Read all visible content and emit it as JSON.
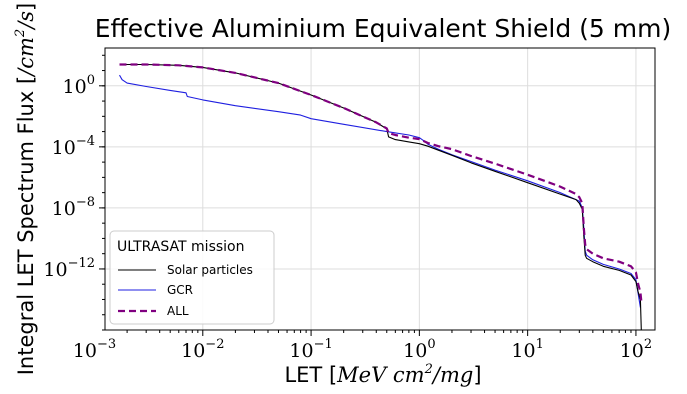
{
  "chart_data": {
    "type": "line",
    "title": "Effective Aluminium Equivalent Shield (5 mm)",
    "xlabel": {
      "prefix": "LET [",
      "math": "MeV cm",
      "sup": "2",
      "tail": "/mg",
      "suffix": "]"
    },
    "ylabel": {
      "prefix": "Integral LET Spectrum Flux [",
      "math": "/cm",
      "sup": "2",
      "tail": "/s",
      "suffix": "]"
    },
    "xscale": "log",
    "yscale": "log",
    "xlim": [
      0.00125,
      150
    ],
    "ylim": [
      1e-16,
      300.0
    ],
    "x_ticks": [
      {
        "value": 0.001,
        "base": "10",
        "exp": "−3"
      },
      {
        "value": 0.01,
        "base": "10",
        "exp": "−2"
      },
      {
        "value": 0.1,
        "base": "10",
        "exp": "−1"
      },
      {
        "value": 1,
        "base": "10",
        "exp": "0"
      },
      {
        "value": 10,
        "base": "10",
        "exp": "1"
      },
      {
        "value": 100,
        "base": "10",
        "exp": "2"
      }
    ],
    "y_ticks": [
      {
        "value": 1,
        "base": "10",
        "exp": "0"
      },
      {
        "value": 0.0001,
        "base": "10",
        "exp": "−4"
      },
      {
        "value": 1e-08,
        "base": "10",
        "exp": "−8"
      },
      {
        "value": 1e-12,
        "base": "10",
        "exp": "−12"
      }
    ],
    "grid": true,
    "legend": {
      "title": "ULTRASAT mission",
      "placement": "lower-left"
    },
    "series": [
      {
        "name": "Solar particles",
        "color": "#000000",
        "style": "solid",
        "x": [
          0.0017,
          0.003,
          0.006,
          0.01,
          0.02,
          0.05,
          0.1,
          0.2,
          0.4,
          0.5,
          0.52,
          0.6,
          0.8,
          1.0,
          1.2,
          1.5,
          2,
          3,
          5,
          10,
          20,
          28,
          30,
          32,
          33,
          34,
          35,
          40,
          50,
          70,
          90,
          100,
          105,
          110,
          112
        ],
        "y": [
          25,
          25,
          22,
          16,
          7,
          1.5,
          0.25,
          0.035,
          0.004,
          0.0015,
          0.00045,
          0.0003,
          0.00021,
          0.00016,
          0.00011,
          6e-05,
          2.8e-05,
          9e-06,
          2.5e-06,
          4.5e-07,
          8e-08,
          3.5e-08,
          2e-08,
          8e-09,
          1.5e-10,
          8e-12,
          5e-12,
          3e-12,
          1.5e-12,
          8e-13,
          4e-13,
          1.5e-13,
          3e-14,
          1e-14,
          1e-16
        ]
      },
      {
        "name": "GCR",
        "color": "#1f1fe0",
        "style": "solid",
        "x": [
          0.0017,
          0.0018,
          0.002,
          0.003,
          0.005,
          0.007,
          0.0072,
          0.01,
          0.02,
          0.05,
          0.08,
          0.1,
          0.2,
          0.5,
          0.8,
          1.0,
          1.1,
          1.2,
          1.5,
          2,
          3,
          5,
          10,
          20,
          30,
          32,
          33,
          34,
          35,
          40,
          50,
          70,
          90,
          100,
          110
        ],
        "y": [
          5,
          2.5,
          1.5,
          0.9,
          0.5,
          0.35,
          0.2,
          0.12,
          0.05,
          0.02,
          0.012,
          0.007,
          0.003,
          0.001,
          0.0006,
          0.0004,
          0.00025,
          0.00015,
          7e-05,
          3e-05,
          1.1e-05,
          3e-06,
          6e-07,
          1e-07,
          2.8e-08,
          1e-08,
          5e-10,
          1.5e-11,
          8e-12,
          4e-12,
          2e-12,
          1e-12,
          5e-13,
          2e-13,
          3e-15
        ]
      },
      {
        "name": "ALL",
        "color": "#800080",
        "style": "dashed",
        "x": [
          0.0017,
          0.003,
          0.006,
          0.01,
          0.02,
          0.05,
          0.1,
          0.2,
          0.4,
          0.5,
          0.52,
          0.6,
          0.8,
          1.0,
          1.2,
          1.5,
          2,
          3,
          5,
          10,
          20,
          28,
          30,
          32,
          33,
          34,
          35,
          40,
          50,
          70,
          90,
          100,
          105,
          110,
          112
        ],
        "y": [
          25,
          25,
          22,
          16,
          7,
          1.5,
          0.25,
          0.035,
          0.004,
          0.0016,
          0.0008,
          0.0006,
          0.0004,
          0.00032,
          0.00018,
          0.00011,
          7e-05,
          2.5e-05,
          8e-06,
          1.5e-06,
          2.5e-07,
          8e-08,
          5e-08,
          2e-08,
          5e-10,
          4e-11,
          2e-11,
          1e-11,
          5e-12,
          3e-12,
          1.5e-12,
          6e-13,
          1e-13,
          3e-14,
          8e-15
        ]
      }
    ]
  }
}
